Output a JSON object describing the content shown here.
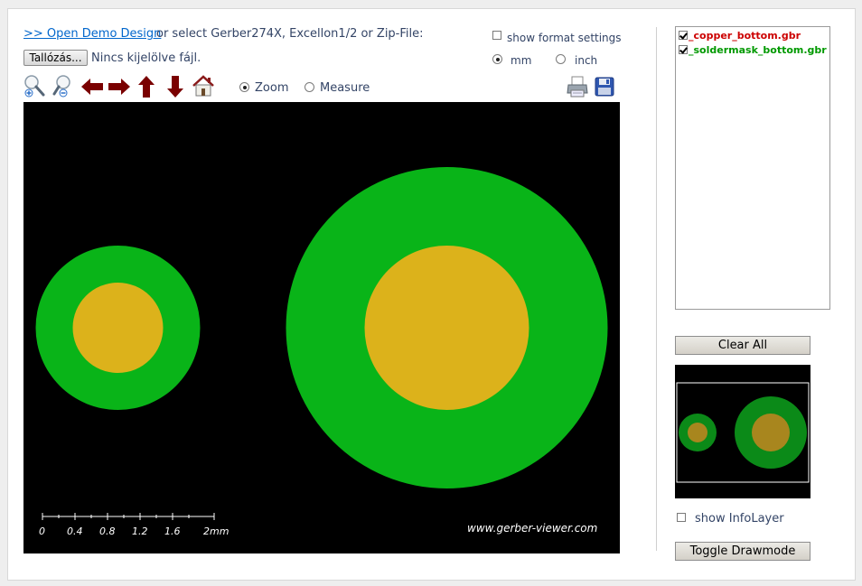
{
  "header": {
    "demo_link": ">> Open Demo Design",
    "select_text": "or select Gerber274X, Excellon1/2 or Zip-File:",
    "browse_label": "Tallózás...",
    "no_file_text": "Nincs kijelölve fájl."
  },
  "settings": {
    "show_format_label": "show format settings",
    "show_format_checked": false,
    "unit_mm_label": "mm",
    "unit_inch_label": "inch",
    "selected_unit": "mm"
  },
  "toolbar": {
    "icons": [
      "zoom-in-icon",
      "zoom-out-icon",
      "arrow-left-icon",
      "arrow-right-icon",
      "arrow-up-icon",
      "arrow-down-icon",
      "home-icon"
    ],
    "mode_zoom_label": "Zoom",
    "mode_measure_label": "Measure",
    "selected_mode": "Zoom",
    "print_icon": "printer-icon",
    "save_icon": "floppy-disk-icon"
  },
  "viewer": {
    "scale_ticks": [
      "0",
      "0.4",
      "0.8",
      "1.2",
      "1.6",
      "2mm"
    ],
    "watermark": "www.gerber-viewer.com",
    "colors": {
      "background": "#000000",
      "soldermask": "#09b418",
      "copper": "#dcb21b"
    }
  },
  "layers": {
    "items": [
      {
        "name": "_copper_bottom.gbr",
        "checked": true,
        "color": "#cc0000"
      },
      {
        "name": "_soldermask_bottom.gbr",
        "checked": true,
        "color": "#009900"
      }
    ],
    "clear_all_label": "Clear All",
    "show_infolayer_label": "show InfoLayer",
    "show_infolayer_checked": false,
    "toggle_drawmode_label": "Toggle Drawmode"
  }
}
